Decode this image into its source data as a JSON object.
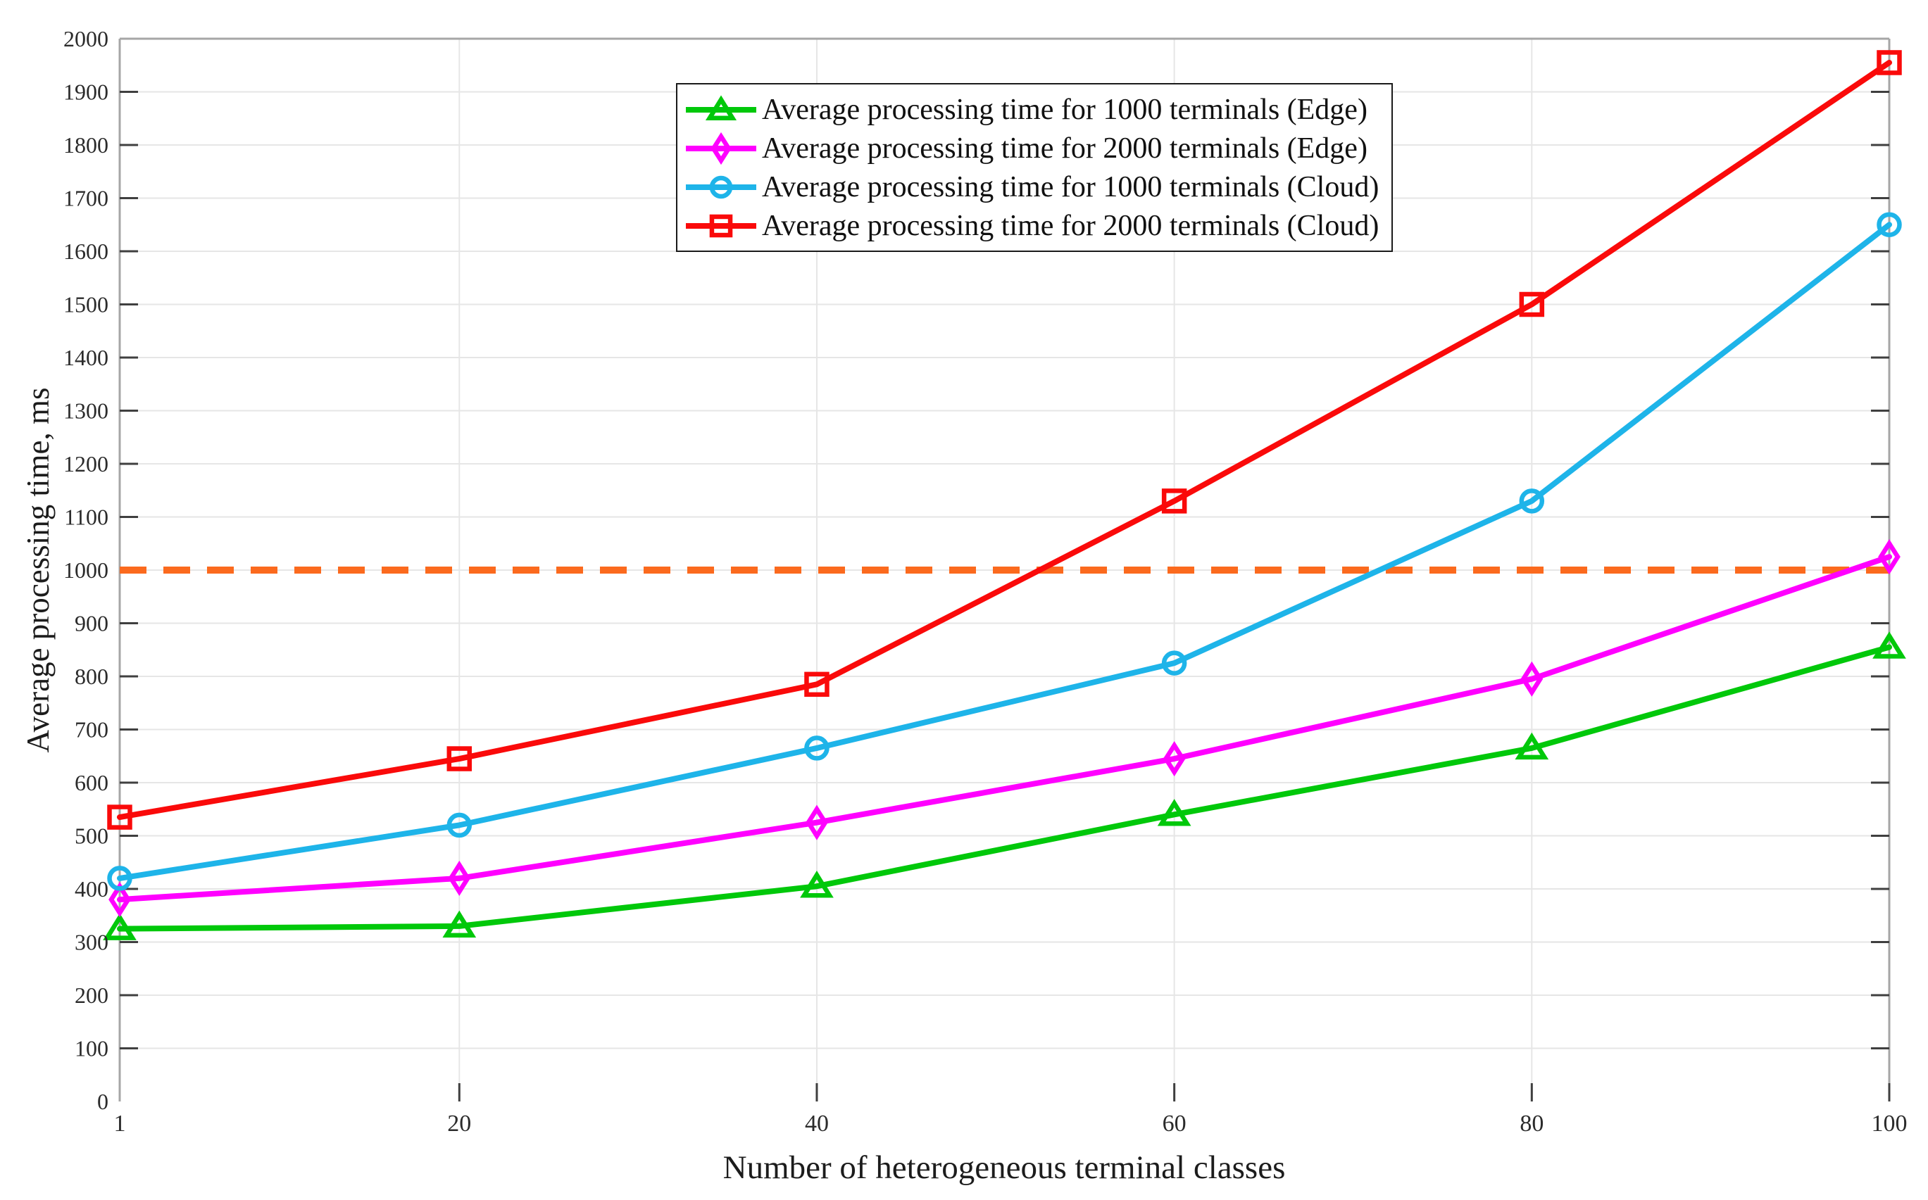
{
  "figure": {
    "background": "#ffffff",
    "axis_color": "#a6a6a6",
    "grid_color": "#e6e6e6",
    "tick_color": "#3f3f3f",
    "tick_label_color": "#2b2b2b"
  },
  "chart_data": {
    "type": "line",
    "title": "",
    "xlabel": "Number of heterogeneous terminal classes",
    "ylabel": "Average processing time, ms",
    "x": [
      1,
      20,
      40,
      60,
      80,
      100
    ],
    "series": [
      {
        "name": "Average processing time for 1000 terminals (Edge)",
        "color": "#00c80a",
        "marker": "triangle",
        "values": [
          325,
          330,
          405,
          540,
          665,
          855
        ]
      },
      {
        "name": "Average processing time for 2000 terminals (Edge)",
        "color": "#ff00ff",
        "marker": "diamond",
        "values": [
          380,
          420,
          525,
          645,
          795,
          1025
        ]
      },
      {
        "name": "Average processing time for 1000 terminals (Cloud)",
        "color": "#1eb4e9",
        "marker": "circle",
        "values": [
          420,
          520,
          665,
          825,
          1130,
          1650
        ]
      },
      {
        "name": "Average processing time for 2000 terminals (Cloud)",
        "color": "#fa0a0a",
        "marker": "square",
        "values": [
          535,
          645,
          785,
          1130,
          1500,
          1955
        ]
      }
    ],
    "threshold_line": {
      "value": 1000,
      "color": "#fb6a1e",
      "style": "dashed"
    },
    "xlim": [
      1,
      100
    ],
    "ylim": [
      0,
      2000
    ],
    "xticks": [
      1,
      20,
      40,
      60,
      80,
      100
    ],
    "yticks": [
      0,
      100,
      200,
      300,
      400,
      500,
      600,
      700,
      800,
      900,
      1000,
      1100,
      1200,
      1300,
      1400,
      1500,
      1600,
      1700,
      1800,
      1900,
      2000
    ],
    "grid": true,
    "legend_position": "top-center-inside"
  }
}
